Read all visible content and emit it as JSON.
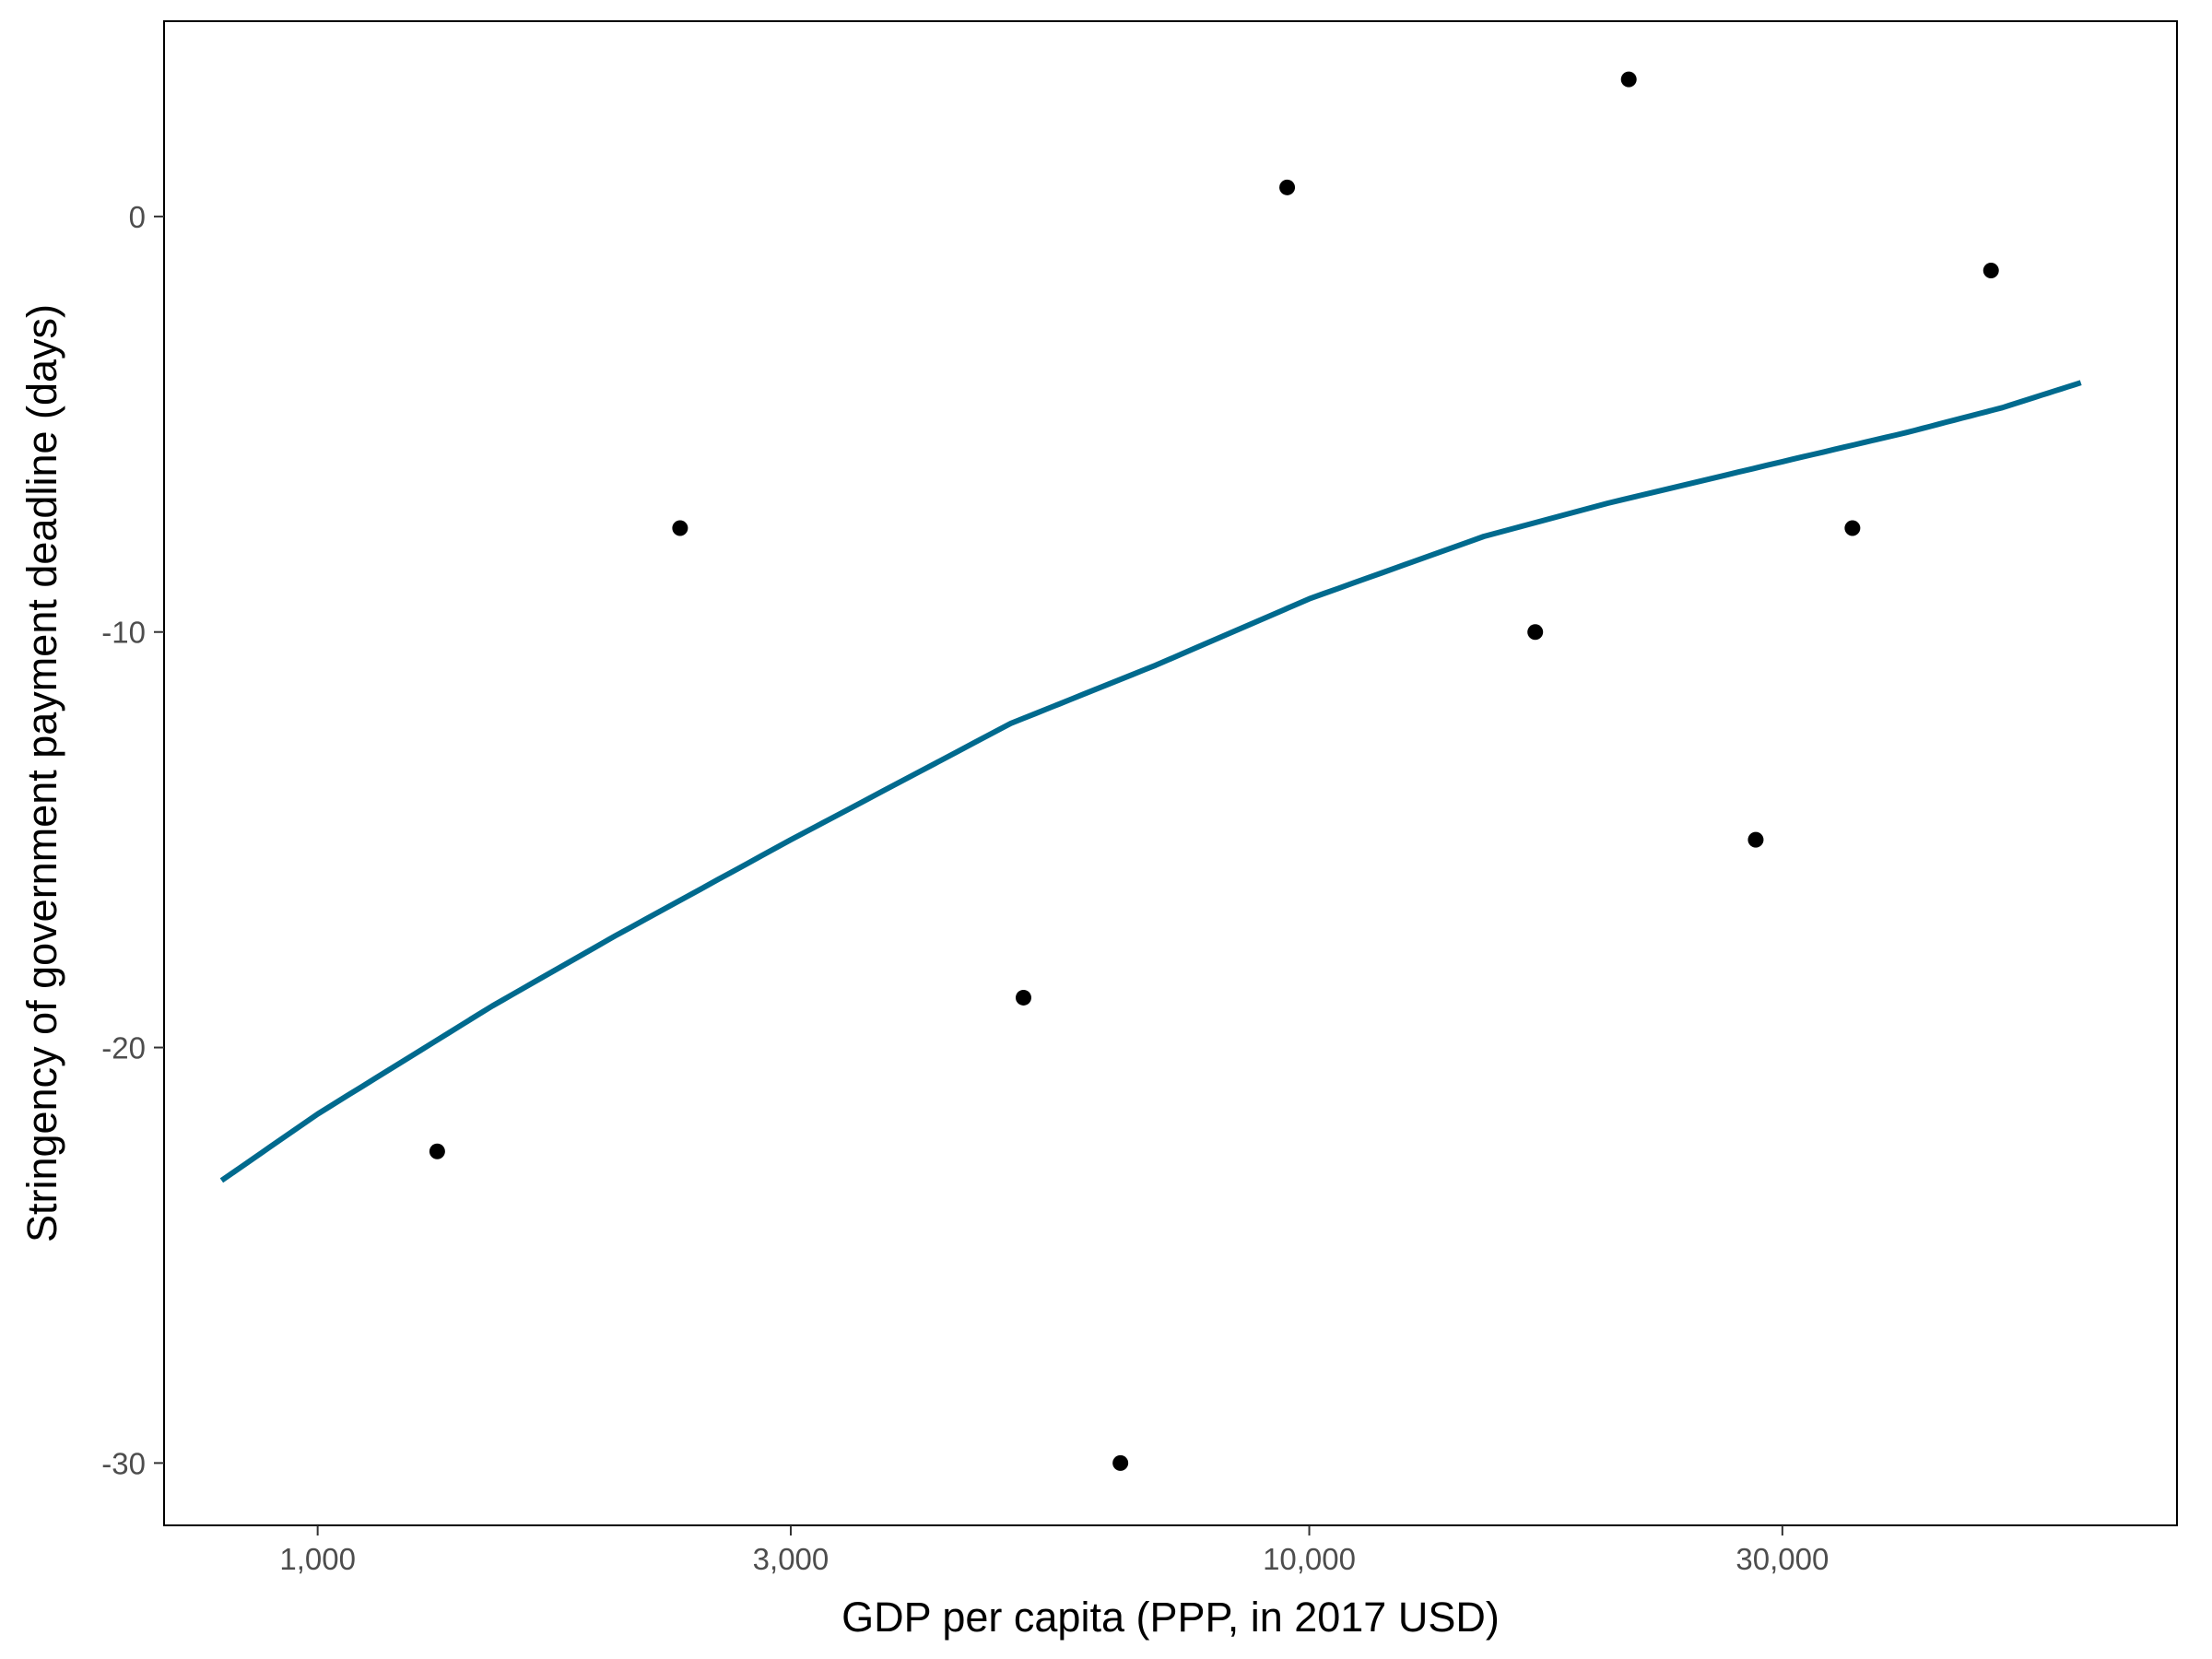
{
  "chart_data": {
    "type": "scatter",
    "title": "",
    "xlabel": "GDP per capita (PPP, in 2017 USD)",
    "ylabel": "Stringency of government payment deadline (days)",
    "x_scale": "log10",
    "xlim": [
      700,
      75000
    ],
    "ylim": [
      -31.5,
      4.7
    ],
    "x_ticks": [
      1000,
      3000,
      10000,
      30000
    ],
    "x_tick_labels": [
      "1,000",
      "3,000",
      "10,000",
      "30,000"
    ],
    "y_ticks": [
      0,
      -10,
      -20,
      -30
    ],
    "y_tick_labels": [
      "0",
      "-10",
      "-20",
      "-30"
    ],
    "grid": false,
    "legend": "none",
    "points": [
      {
        "x": 1320,
        "y": -22.5
      },
      {
        "x": 2320,
        "y": -7.5
      },
      {
        "x": 5150,
        "y": -18.8
      },
      {
        "x": 6450,
        "y": -30
      },
      {
        "x": 9500,
        "y": 0.7
      },
      {
        "x": 16900,
        "y": -10
      },
      {
        "x": 21000,
        "y": 3.3
      },
      {
        "x": 28200,
        "y": -15
      },
      {
        "x": 35300,
        "y": -7.5
      },
      {
        "x": 48700,
        "y": -1.3
      }
    ],
    "fit_line": {
      "x": [
        800,
        1000,
        1500,
        2000,
        3000,
        5000,
        7000,
        10000,
        15000,
        20000,
        30000,
        40000,
        50000,
        60000
      ],
      "y": [
        -23.2,
        -21.6,
        -19.0,
        -17.3,
        -15.0,
        -12.2,
        -10.8,
        -9.2,
        -7.7,
        -6.9,
        -5.9,
        -5.2,
        -4.6,
        -4.0
      ]
    },
    "point_color": "#000000",
    "line_color": "#006a8e"
  }
}
